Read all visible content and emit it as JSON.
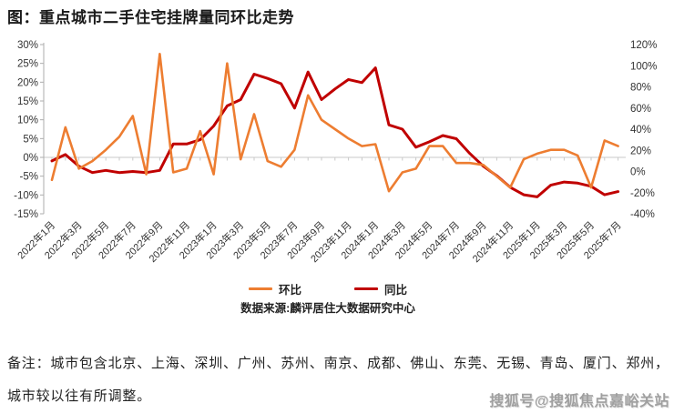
{
  "page": {
    "title": "图：重点城市二手住宅挂牌量同环比走势",
    "background": "#FFFFFF"
  },
  "chart_data": {
    "type": "line",
    "title": "重点城市二手住宅挂牌量同环比走势",
    "categories": [
      "2022年1月",
      "2022年2月",
      "2022年3月",
      "2022年4月",
      "2022年5月",
      "2022年6月",
      "2022年7月",
      "2022年8月",
      "2022年9月",
      "2022年10月",
      "2022年11月",
      "2022年12月",
      "2023年1月",
      "2023年2月",
      "2023年3月",
      "2023年4月",
      "2023年5月",
      "2023年6月",
      "2023年7月",
      "2023年8月",
      "2023年9月",
      "2023年10月",
      "2023年11月",
      "2023年12月",
      "2024年1月",
      "2024年2月",
      "2024年3月",
      "2024年4月",
      "2024年5月",
      "2024年6月",
      "2024年7月",
      "2024年8月",
      "2024年9月",
      "2024年10月",
      "2024年11月",
      "2024年12月",
      "2025年1月",
      "2025年2月",
      "2025年3月",
      "2025年4月",
      "2025年5月",
      "2025年6月",
      "2025年7月"
    ],
    "x_axis": {
      "label_every_n": 2,
      "label_rotation_deg": -45
    },
    "axes": {
      "left": {
        "min": -15,
        "max": 30,
        "step": 5,
        "ticks": [
          "30%",
          "25%",
          "20%",
          "15%",
          "10%",
          "5%",
          "0%",
          "-5%",
          "-10%",
          "-15%"
        ]
      },
      "right": {
        "min": -40,
        "max": 120,
        "step": 20,
        "ticks": [
          "120%",
          "100%",
          "80%",
          "60%",
          "40%",
          "20%",
          "0%",
          "-20%",
          "-40%"
        ]
      }
    },
    "series": [
      {
        "name": "环比",
        "axis": "left",
        "color": "#ED7D31",
        "values": [
          -6,
          8,
          -3,
          -1,
          2,
          5.5,
          11,
          -4.5,
          27.5,
          -4,
          -3,
          7,
          -4.5,
          25,
          -0.5,
          11.5,
          -1,
          -2.5,
          2,
          16.5,
          10,
          7.5,
          5,
          3,
          3.5,
          -9,
          -4,
          -3,
          3,
          3,
          -1.5,
          -1.5,
          -2,
          -5,
          -8,
          -0.5,
          1,
          2,
          2,
          0.5,
          -8,
          4.5,
          3
        ]
      },
      {
        "name": "同比",
        "axis": "right",
        "color": "#C00000",
        "values": [
          10,
          16,
          5,
          -1,
          1,
          -1,
          0,
          -1,
          1,
          26,
          26,
          30,
          43,
          62,
          68,
          92,
          88,
          83,
          60,
          94,
          68,
          78,
          87,
          84,
          98,
          44,
          40,
          23,
          28,
          34,
          31,
          17,
          5,
          -4,
          -15,
          -22,
          -24,
          -13,
          -10,
          -11,
          -14,
          -22,
          -19
        ]
      }
    ],
    "legend_position": "bottom",
    "grid": "zero-line-only",
    "source": "数据来源:麟评居住大数据研究中心"
  },
  "notes": {
    "line1": "备注：城市包含北京、上海、深圳、广州、苏州、南京、成都、佛山、东莞、无锡、青岛、厦门、郑州，",
    "line2": "城市较以往有所调整。"
  },
  "watermark": {
    "text": "搜狐号@搜狐焦点嘉峪关站"
  },
  "colors": {
    "mom_line": "#ED7D31",
    "yoy_line": "#C00000",
    "axis_text": "#333333",
    "axis_line": "#ADADAD",
    "grid_line": "#C9C9C9",
    "watermark_text": "#A0A0A0"
  }
}
